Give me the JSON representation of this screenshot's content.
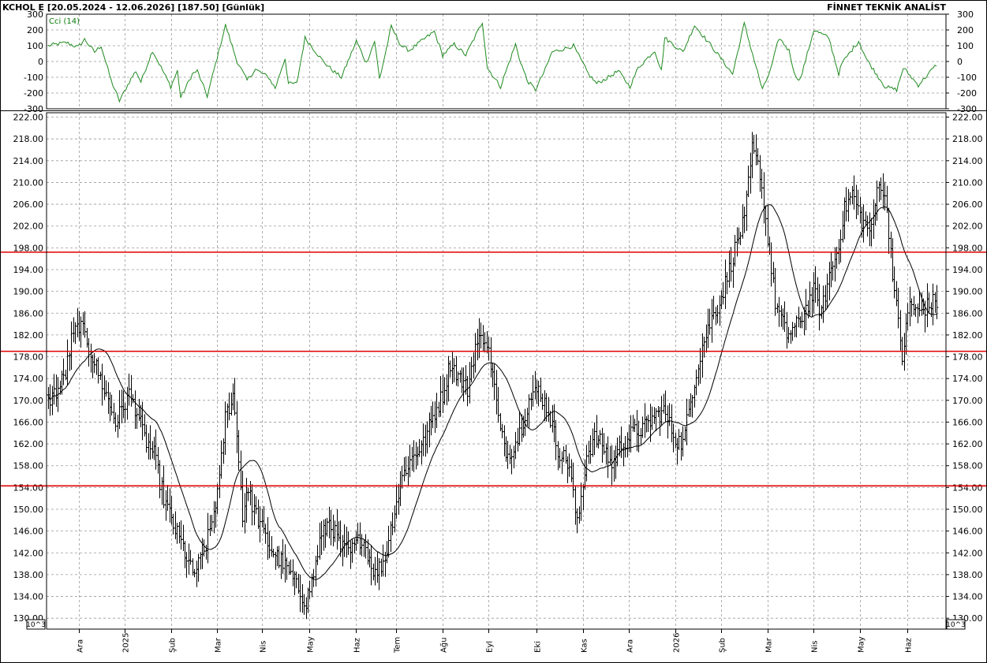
{
  "header": {
    "symbol_info": "KCHOL E  [20.05.2024 - 12.06.2026]  [187.50]  [Günlük]",
    "brand": "FİNNET TEKNİK ANALİST"
  },
  "colors": {
    "bars": "#000000",
    "moving_average": "#000000",
    "cci": "#1f8a1f",
    "levels": "#e00000",
    "grid": "#9a9a9a"
  },
  "chart_data": [
    {
      "type": "line",
      "title": "Cci (14)",
      "y_ticks": [
        300,
        200,
        100,
        0,
        -100,
        -200,
        -300
      ],
      "y_tick_labels": [
        "300",
        "200",
        "100",
        "0",
        "-100",
        "-200",
        "-300"
      ],
      "ylim": [
        -300,
        300
      ],
      "grid": true,
      "series": [
        {
          "name": "Cci (14)",
          "x": [
            0,
            11,
            18,
            22,
            28,
            32,
            38,
            43,
            50,
            53,
            56,
            63,
            74,
            78,
            80,
            87,
            90,
            96,
            107,
            114,
            120,
            125,
            133,
            137,
            141,
            143,
            145,
            150,
            155,
            166,
            172,
            177,
            186,
            192,
            197,
            200,
            203,
            207,
            213,
            218,
            224,
            233,
            238,
            245,
            252,
            262,
            265,
            273,
            282,
            284,
            289,
            294,
            300,
            304,
            311,
            317,
            326,
            331,
            338,
            344,
            351,
            356,
            366,
            370,
            372,
            383,
            390,
            400,
            403,
            413,
            420,
            431,
            436,
            441,
            447,
            451,
            454,
            462,
            471,
            477,
            479,
            489,
            494,
            505,
            512,
            516,
            525,
            536
          ],
          "values": [
            100,
            120,
            90,
            140,
            60,
            100,
            -120,
            -250,
            -110,
            -60,
            -130,
            70,
            -160,
            -60,
            -230,
            -80,
            -60,
            -220,
            230,
            0,
            -120,
            -50,
            -100,
            -170,
            -40,
            20,
            -140,
            -140,
            150,
            0,
            -60,
            -100,
            130,
            -10,
            130,
            -110,
            30,
            220,
            100,
            70,
            120,
            190,
            40,
            110,
            40,
            250,
            -40,
            -160,
            110,
            30,
            -120,
            -180,
            -50,
            60,
            80,
            100,
            -80,
            -140,
            -100,
            -60,
            -160,
            -40,
            70,
            -60,
            150,
            60,
            230,
            100,
            60,
            -80,
            240,
            -180,
            -50,
            150,
            70,
            -100,
            -110,
            200,
            150,
            -80,
            -10,
            130,
            10,
            -160,
            -180,
            -40,
            -150,
            -20
          ]
        }
      ]
    },
    {
      "type": "bar",
      "bar_style": "ohlc",
      "y_ticks": [
        222,
        218,
        214,
        210,
        206,
        202,
        198,
        194,
        190,
        186,
        182,
        178,
        174,
        170,
        166,
        162,
        158,
        154,
        150,
        146,
        142,
        138,
        134,
        130
      ],
      "y_tick_labels": [
        "222.00",
        "218.00",
        "214.00",
        "210.00",
        "206.00",
        "202.00",
        "198.00",
        "194.00",
        "190.00",
        "186.00",
        "182.00",
        "178.00",
        "174.00",
        "170.00",
        "166.00",
        "162.00",
        "158.00",
        "154.00",
        "150.00",
        "146.00",
        "142.00",
        "138.00",
        "134.00",
        "130.00"
      ],
      "ylim": [
        128,
        222.8
      ],
      "unit_label": "10^3",
      "grid": true,
      "month_labels": [
        {
          "label": "Ara",
          "x": 16
        },
        {
          "label": "2025",
          "x": 40
        },
        {
          "label": "Şub",
          "x": 64
        },
        {
          "label": "Mar",
          "x": 88
        },
        {
          "label": "Nis",
          "x": 111
        },
        {
          "label": "May",
          "x": 136
        },
        {
          "label": "Haz",
          "x": 160
        },
        {
          "label": "Tem",
          "x": 181
        },
        {
          "label": "Ağu",
          "x": 205
        },
        {
          "label": "Eyl",
          "x": 229
        },
        {
          "label": "Eki",
          "x": 254
        },
        {
          "label": "Kas",
          "x": 278
        },
        {
          "label": "Ara",
          "x": 302
        },
        {
          "label": "2026",
          "x": 326
        },
        {
          "label": "Şub",
          "x": 350
        },
        {
          "label": "Mar",
          "x": 374
        },
        {
          "label": "Nis",
          "x": 398
        },
        {
          "label": "May",
          "x": 422
        },
        {
          "label": "Haz",
          "x": 447
        }
      ],
      "horizontal_levels": [
        197.2,
        179.0,
        154.3
      ],
      "price_anchors": {
        "x": [
          0,
          5,
          9,
          12,
          16,
          20,
          26,
          31,
          35,
          42,
          46,
          50,
          55,
          60,
          65,
          70,
          75,
          80,
          84,
          89,
          92,
          96,
          99,
          101,
          103,
          108,
          115,
          122,
          129,
          134,
          138,
          141,
          146,
          152,
          157,
          163,
          170,
          175,
          180,
          185,
          190,
          195,
          200,
          205,
          209,
          214,
          218,
          222,
          227,
          231,
          235,
          239,
          244,
          250,
          255,
          260,
          265,
          271,
          275,
          280,
          284,
          288,
          293,
          298,
          304,
          310,
          315,
          320,
          326,
          330,
          335,
          340,
          345,
          350,
          354,
          358,
          362,
          366,
          370,
          374,
          378,
          384,
          390,
          394,
          398,
          402,
          406,
          410,
          414,
          418,
          423,
          428,
          432,
          436,
          440,
          444,
          448,
          452,
          456,
          460
        ],
        "values": [
          170,
          172,
          175,
          181,
          184,
          181,
          175,
          170,
          166,
          171,
          168,
          163,
          160,
          152,
          147,
          143,
          138,
          141,
          146,
          155,
          167,
          171,
          160,
          148,
          154,
          149,
          143,
          140,
          136,
          133,
          138,
          144,
          148,
          143,
          142,
          145,
          138,
          141,
          150,
          157,
          160,
          162,
          167,
          171,
          177,
          174,
          172,
          180,
          182,
          175,
          164,
          160,
          163,
          170,
          172,
          168,
          161,
          158,
          147,
          160,
          163,
          162,
          158,
          162,
          164,
          165,
          167,
          168,
          163,
          162,
          172,
          180,
          185,
          189,
          194,
          199,
          203,
          216,
          212,
          200,
          188,
          182,
          184,
          187,
          190,
          186,
          193,
          197,
          205,
          208,
          203,
          201,
          211,
          205,
          190,
          178,
          188,
          186,
          187,
          188
        ]
      },
      "series": [
        {
          "name": "KCHOL E"
        },
        {
          "name": "moving average"
        }
      ],
      "ma_period": 20
    }
  ]
}
